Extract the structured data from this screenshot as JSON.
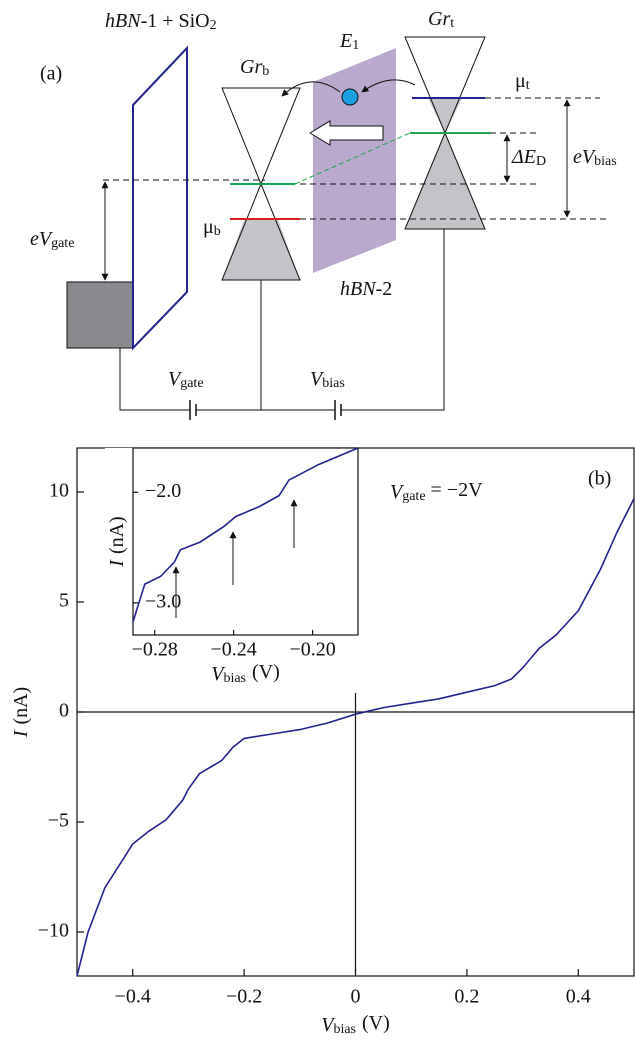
{
  "diagram": {
    "panel_label": "(a)",
    "hbn1": {
      "italic": "hBN",
      "plain": "-1 + SiO",
      "sub": "2"
    },
    "e1": {
      "text": "E",
      "sub": "1"
    },
    "gr_b": {
      "text": "Gr",
      "sub": "b"
    },
    "gr_t": {
      "text": "Gr",
      "sub": "t"
    },
    "mu_t": {
      "plain": "μ",
      "sub": "t"
    },
    "mu_b": {
      "plain": "μ",
      "sub": "b"
    },
    "delta_ed": {
      "text": "ΔE",
      "sub": "D"
    },
    "ev_bias": {
      "text": "eV",
      "sub": "bias"
    },
    "ev_gate": {
      "text": "eV",
      "sub": "gate"
    },
    "hbn2": {
      "italic": "hBN",
      "plain": "-2"
    },
    "v_gate": {
      "text": "V",
      "sub": "gate"
    },
    "v_bias": {
      "text": "V",
      "sub": "bias"
    }
  },
  "chart_data": [
    {
      "type": "line",
      "panel_label": "(b)",
      "annotation": {
        "text": "V",
        "sub": "gate",
        "rest": " = −2V"
      },
      "xlabel": {
        "text": "V",
        "sub": "bias",
        "unit": "(V)"
      },
      "ylabel": {
        "text": "I",
        "unit": "(nA)"
      },
      "x": [
        -0.5,
        -0.48,
        -0.45,
        -0.42,
        -0.4,
        -0.37,
        -0.34,
        -0.33,
        -0.31,
        -0.3,
        -0.28,
        -0.26,
        -0.24,
        -0.22,
        -0.2,
        -0.15,
        -0.1,
        -0.05,
        0,
        0.05,
        0.1,
        0.15,
        0.2,
        0.25,
        0.28,
        0.3,
        0.33,
        0.36,
        0.4,
        0.44,
        0.47,
        0.5
      ],
      "series": [
        {
          "color": "#23238f",
          "values": [
            -12,
            -10,
            -8,
            -6.8,
            -6.0,
            -5.4,
            -4.9,
            -4.6,
            -4.0,
            -3.5,
            -2.8,
            -2.5,
            -2.2,
            -1.6,
            -1.2,
            -1.0,
            -0.8,
            -0.5,
            -0.1,
            0.2,
            0.4,
            0.6,
            0.9,
            1.2,
            1.5,
            2.0,
            2.9,
            3.5,
            4.6,
            6.5,
            8.2,
            9.7
          ]
        }
      ],
      "xlim": [
        -0.5,
        0.5
      ],
      "ylim": [
        -12,
        12
      ],
      "xticks": [
        {
          "value": -0.4,
          "label": "−0.4"
        },
        {
          "value": -0.2,
          "label": "−0.2"
        },
        0,
        0.2,
        0.4
      ],
      "yticks": [
        {
          "value": -10,
          "label": "−10"
        },
        {
          "value": -5,
          "label": "−5"
        },
        0,
        5,
        10
      ]
    },
    {
      "type": "line",
      "xlabel": {
        "text": "V",
        "sub": "bias",
        "unit": "(V)"
      },
      "ylabel": {
        "text": "I",
        "unit": "(nA)"
      },
      "x": [
        -0.291,
        -0.285,
        -0.277,
        -0.27,
        -0.267,
        -0.257,
        -0.245,
        -0.239,
        -0.227,
        -0.217,
        -0.212,
        -0.197,
        -0.177
      ],
      "series": [
        {
          "color": "#23238f",
          "values": [
            -3.17,
            -2.83,
            -2.76,
            -2.63,
            -2.52,
            -2.45,
            -2.31,
            -2.22,
            -2.13,
            -2.03,
            -1.89,
            -1.75,
            -1.6
          ]
        }
      ],
      "xlim": [
        -0.291,
        -0.177
      ],
      "ylim": [
        -3.29,
        -1.6
      ],
      "xticks": [
        {
          "value": -0.28,
          "label": "−0.28"
        },
        {
          "value": -0.24,
          "label": "−0.24"
        },
        {
          "value": -0.2,
          "label": "−0.20"
        }
      ],
      "yticks": [
        {
          "value": -3,
          "label": "−3.0"
        },
        {
          "value": -2,
          "label": "−2.0"
        }
      ]
    }
  ]
}
